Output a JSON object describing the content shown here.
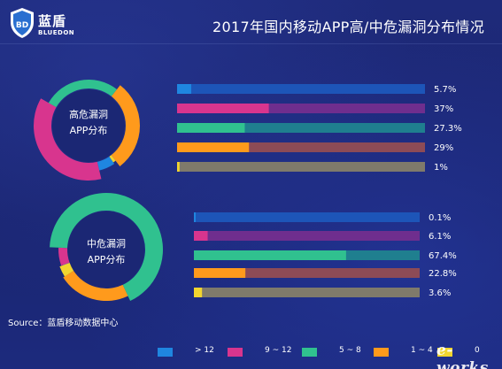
{
  "header": {
    "logo_name": "蓝盾",
    "logo_sub": "BLUEDON",
    "title": "2017年国内移动APP高/中危漏洞分布情况"
  },
  "source": "Source：蓝盾移动数据中心",
  "watermark": "e-works",
  "chart_data": [
    {
      "type": "bar",
      "title": "高危漏洞APP分布",
      "donut_label_line1": "高危漏洞",
      "donut_label_line2": "APP分布",
      "categories": [
        "> 12",
        "9 ~ 12",
        "5 ~ 8",
        "1 ~ 4",
        "0"
      ],
      "values": [
        5.7,
        37,
        27.3,
        29,
        1
      ],
      "value_labels": [
        "5.7%",
        "37%",
        "27.3%",
        "29%",
        "1%"
      ],
      "unit": "%",
      "ylim": [
        0,
        100
      ]
    },
    {
      "type": "bar",
      "title": "中危漏洞APP分布",
      "donut_label_line1": "中危漏洞",
      "donut_label_line2": "APP分布",
      "categories": [
        "> 12",
        "9 ~ 12",
        "5 ~ 8",
        "1 ~ 4",
        "0"
      ],
      "values": [
        0.1,
        6.1,
        67.4,
        22.8,
        3.6
      ],
      "value_labels": [
        "0.1%",
        "6.1%",
        "67.4%",
        "22.8%",
        "3.6%"
      ],
      "unit": "%",
      "ylim": [
        0,
        100
      ]
    }
  ],
  "legend": {
    "items": [
      {
        "label": "> 12",
        "color": "#1f86e0"
      },
      {
        "label": "9 ~ 12",
        "color": "#d8358e"
      },
      {
        "label": "5 ~ 8",
        "color": "#30c18f"
      },
      {
        "label": "1 ~ 4",
        "color": "#ff9a1c"
      },
      {
        "label": "0",
        "color": "#f2d52f"
      }
    ]
  },
  "colors": {
    "series": [
      "#1f86e0",
      "#d8358e",
      "#30c18f",
      "#ff9a1c",
      "#f2d52f"
    ],
    "tracks": [
      "#1d55b8",
      "#6f2e8e",
      "#1f7f8f",
      "#8d4b56",
      "#7f7a6b"
    ]
  }
}
